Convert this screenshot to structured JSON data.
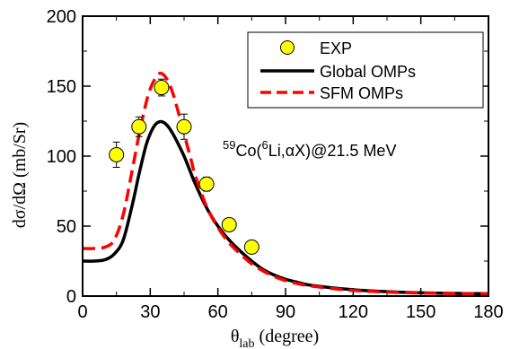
{
  "chart_data": {
    "type": "scatter",
    "xlim": [
      0,
      180
    ],
    "ylim": [
      0,
      200
    ],
    "xticks": [
      0,
      30,
      60,
      90,
      120,
      150,
      180
    ],
    "yticks": [
      0,
      50,
      100,
      150,
      200
    ],
    "xlabel_main": "θ",
    "xlabel_sub": "lab",
    "xlabel_unit": "(degree)",
    "ylabel": "dσ/dΩ (mb/Sr)",
    "annotation": {
      "sup1": "59",
      "text1": "Co(",
      "sup2": "6",
      "text2": "Li,αX)@21.5 MeV"
    },
    "legend_position": "top-right",
    "series": [
      {
        "name": "EXP",
        "style": "markers",
        "color": "#ffff00",
        "points": [
          {
            "x": 15,
            "y": 101,
            "err": 9
          },
          {
            "x": 25,
            "y": 121,
            "err": 7
          },
          {
            "x": 35,
            "y": 149,
            "err": 6
          },
          {
            "x": 45,
            "y": 121,
            "err": 9
          },
          {
            "x": 55,
            "y": 80,
            "err": 5
          },
          {
            "x": 65,
            "y": 51,
            "err": 4
          },
          {
            "x": 75,
            "y": 35,
            "err": 3
          }
        ]
      },
      {
        "name": "Global OMPs",
        "style": "solid",
        "color": "#000000",
        "x": [
          0,
          5,
          10,
          14,
          18,
          22,
          25,
          28,
          30,
          32,
          34,
          36,
          38,
          40,
          42,
          45,
          48,
          50,
          55,
          60,
          65,
          70,
          75,
          80,
          85,
          90,
          95,
          100,
          110,
          120,
          130,
          140,
          150,
          160,
          170,
          180
        ],
        "y": [
          25,
          25,
          26,
          30,
          40,
          65,
          87,
          107,
          116,
          122,
          124.5,
          124,
          121,
          116,
          110,
          100,
          88,
          80,
          63,
          50,
          40,
          32,
          25,
          19,
          15,
          12,
          10,
          8,
          6,
          4.5,
          3.5,
          2.8,
          2.3,
          2,
          1.8,
          1.7
        ]
      },
      {
        "name": "SFM OMPs",
        "style": "dashed",
        "color": "#ff0000",
        "x": [
          0,
          5,
          10,
          14,
          18,
          22,
          25,
          28,
          30,
          32,
          34,
          36,
          38,
          40,
          42,
          45,
          48,
          50,
          55,
          60,
          65,
          70,
          75,
          80,
          85,
          90,
          95,
          100,
          110,
          120,
          130,
          140,
          150,
          160,
          170,
          180
        ],
        "y": [
          34,
          34,
          35,
          40,
          58,
          90,
          115,
          137,
          148,
          155,
          159,
          158,
          153,
          145,
          134,
          116,
          98,
          86,
          64,
          49,
          38,
          30,
          23,
          18,
          14,
          11,
          9,
          7.5,
          5.5,
          4,
          3.2,
          2.6,
          2.2,
          1.9,
          1.7,
          1.6
        ]
      }
    ]
  }
}
